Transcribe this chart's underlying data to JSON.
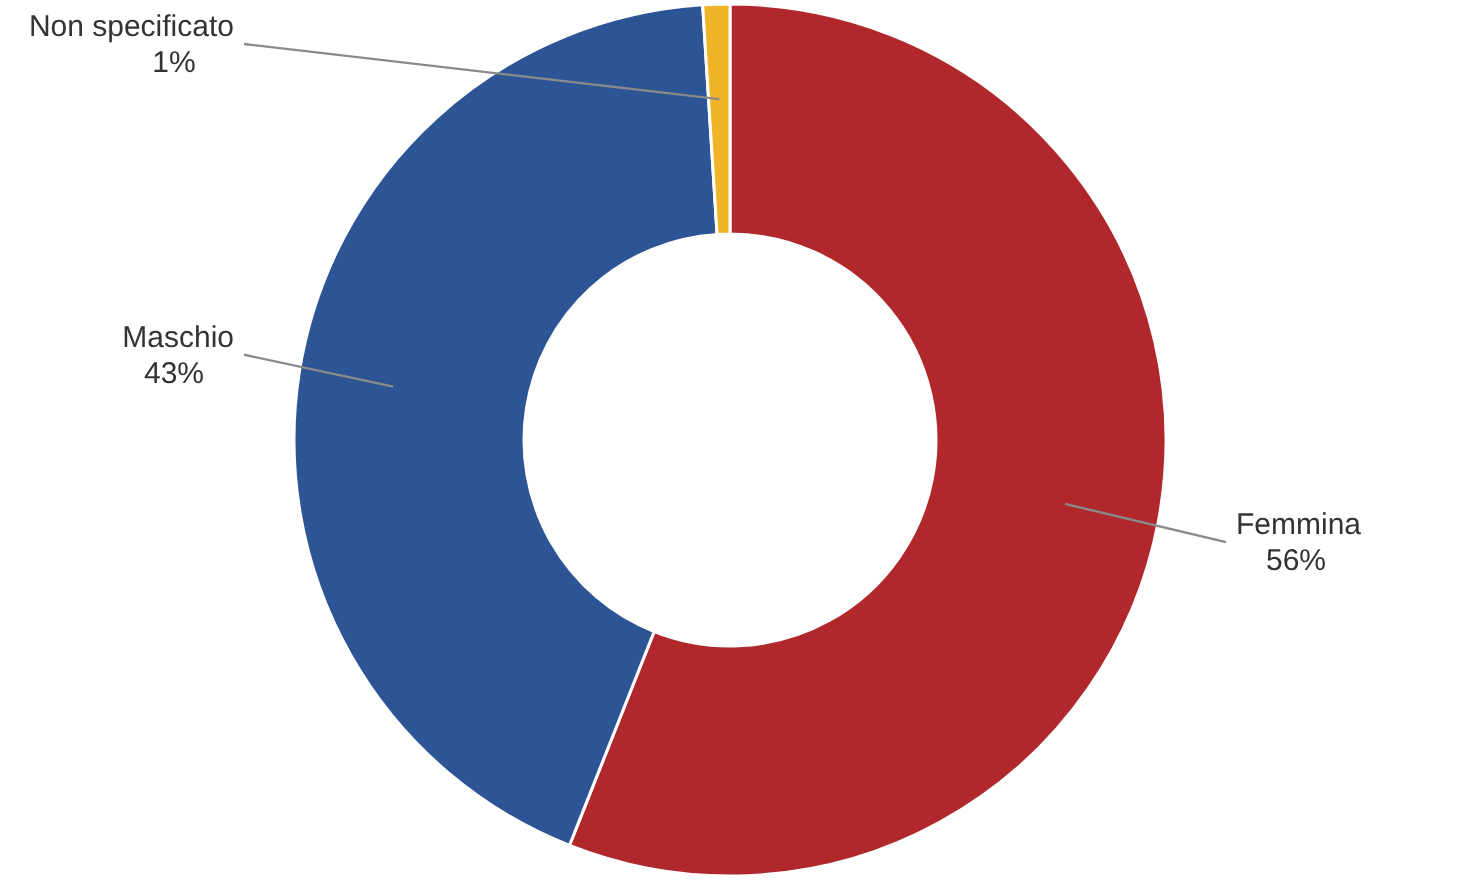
{
  "chart_data": {
    "type": "donut",
    "categories": [
      "Femmina",
      "Maschio",
      "Non specificato"
    ],
    "values": [
      56,
      43,
      1
    ],
    "colors": [
      "#b0282c",
      "#2d5596",
      "#f0b429"
    ],
    "value_labels": [
      "56%",
      "43%",
      "1%"
    ]
  }
}
